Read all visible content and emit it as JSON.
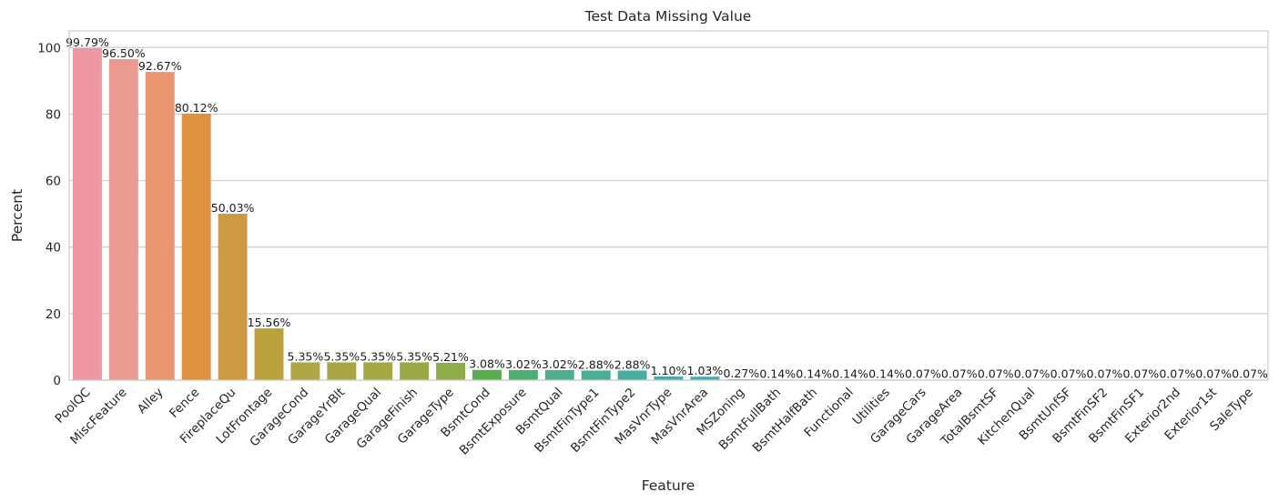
{
  "chart_data": {
    "type": "bar",
    "title": "Test Data Missing Value",
    "xlabel": "Feature",
    "ylabel": "Percent",
    "ylim": [
      0,
      105
    ],
    "yticks": [
      0,
      20,
      40,
      60,
      80,
      100
    ],
    "grid": true,
    "categories": [
      "PoolQC",
      "MiscFeature",
      "Alley",
      "Fence",
      "FireplaceQu",
      "LotFrontage",
      "GarageCond",
      "GarageYrBlt",
      "GarageQual",
      "GarageFinish",
      "GarageType",
      "BsmtCond",
      "BsmtExposure",
      "BsmtQual",
      "BsmtFinType1",
      "BsmtFinType2",
      "MasVnrType",
      "MasVnrArea",
      "MSZoning",
      "BsmtFullBath",
      "BsmtHalfBath",
      "Functional",
      "Utilities",
      "GarageCars",
      "GarageArea",
      "TotalBsmtSF",
      "KitchenQual",
      "BsmtUnfSF",
      "BsmtFinSF2",
      "BsmtFinSF1",
      "Exterior2nd",
      "Exterior1st",
      "SaleType"
    ],
    "values": [
      99.79,
      96.5,
      92.67,
      80.12,
      50.03,
      15.56,
      5.35,
      5.35,
      5.35,
      5.35,
      5.21,
      3.08,
      3.02,
      3.02,
      2.88,
      2.88,
      1.1,
      1.03,
      0.27,
      0.14,
      0.14,
      0.14,
      0.14,
      0.07,
      0.07,
      0.07,
      0.07,
      0.07,
      0.07,
      0.07,
      0.07,
      0.07,
      0.07
    ],
    "labels": [
      "99.79%",
      "96.50%",
      "92.67%",
      "80.12%",
      "50.03%",
      "15.56%",
      "5.35%",
      "5.35%",
      "5.35%",
      "5.35%",
      "5.21%",
      "3.08%",
      "3.02%",
      "3.02%",
      "2.88%",
      "2.88%",
      "1.10%",
      "1.03%",
      "0.27%",
      "0.14%",
      "0.14%",
      "0.14%",
      "0.14%",
      "0.07%",
      "0.07%",
      "0.07%",
      "0.07%",
      "0.07%",
      "0.07%",
      "0.07%",
      "0.07%",
      "0.07%",
      "0.07%"
    ],
    "colors": [
      "#ec97a1",
      "#ea9a8e",
      "#e89672",
      "#e0913f",
      "#cd9a44",
      "#bba03e",
      "#ada745",
      "#a9a745",
      "#a3a845",
      "#9ba845",
      "#8eac48",
      "#58b04d",
      "#4daf72",
      "#4bb08a",
      "#48ae95",
      "#47ad9d",
      "#45abad",
      "#44a9b5",
      "#46a6be",
      "#49a2c6",
      "#4d9ece",
      "#549ad8",
      "#6a94e1",
      "#8890e8",
      "#9b8ae8",
      "#aa84e7",
      "#b87ee6",
      "#c67be3",
      "#d277df",
      "#dd74db",
      "#e375cf",
      "#e77bc2",
      "#ea85b3"
    ]
  }
}
